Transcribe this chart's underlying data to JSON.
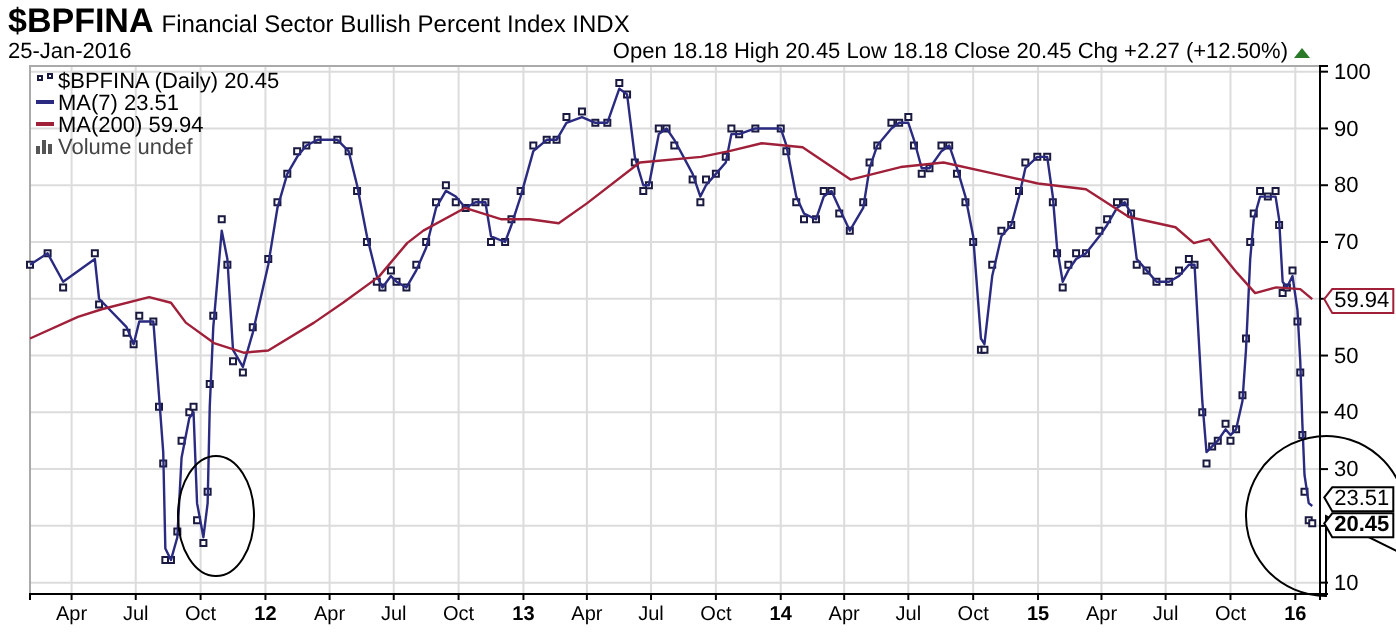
{
  "chart_data": {
    "type": "line",
    "title": "$BPFINA",
    "subtitle": "Financial Sector Bullish Percent Index INDX",
    "annotations": [
      "25-Jan-2016",
      "Open 18.18 High 20.45 Low 18.18 Close 20.45 Chg +2.27 (+12.50%)",
      "Volume undef",
      {
        "text": "59.94",
        "x": "2016-01-25",
        "y": 59.94
      },
      {
        "text": "23.51",
        "x": "2016-01-25",
        "y": 23.51
      },
      {
        "text": "20.45",
        "x": "2016-01-25",
        "y": 20.45
      }
    ],
    "xlim": [
      "2011-02-01",
      "2016-02-05"
    ],
    "ylim": [
      8,
      101
    ],
    "yticks": [
      10,
      {
        "value": 20,
        "label": null
      },
      30,
      40,
      50,
      {
        "value": 60,
        "label": null
      },
      70,
      80,
      90,
      100
    ],
    "xticks": [
      {
        "value": "2011-04-01",
        "label": "Apr"
      },
      {
        "value": "2011-07-01",
        "label": "Jul"
      },
      {
        "value": "2011-10-01",
        "label": "Oct"
      },
      {
        "value": "2012-01-01",
        "label": "12"
      },
      {
        "value": "2012-04-01",
        "label": "Apr"
      },
      {
        "value": "2012-07-01",
        "label": "Jul"
      },
      {
        "value": "2012-10-01",
        "label": "Oct"
      },
      {
        "value": "2013-01-01",
        "label": "13"
      },
      {
        "value": "2013-04-01",
        "label": "Apr"
      },
      {
        "value": "2013-07-01",
        "label": "Jul"
      },
      {
        "value": "2013-10-01",
        "label": "Oct"
      },
      {
        "value": "2014-01-01",
        "label": "14"
      },
      {
        "value": "2014-04-01",
        "label": "Apr"
      },
      {
        "value": "2014-07-01",
        "label": "Jul"
      },
      {
        "value": "2014-10-01",
        "label": "Oct"
      },
      {
        "value": "2015-01-01",
        "label": "15"
      },
      {
        "value": "2015-04-01",
        "label": "Apr"
      },
      {
        "value": "2015-07-01",
        "label": "Jul"
      },
      {
        "value": "2015-10-01",
        "label": "Oct"
      },
      {
        "value": "2016-01-01",
        "label": "16"
      }
    ],
    "grid": true,
    "legend": "top left",
    "series": [
      {
        "name": "$BPFINA (Daily) 20.45",
        "type": "scatter",
        "marker": "square",
        "color": "#1a1a40",
        "x": [
          "2011-02-01",
          "2011-02-26",
          "2011-03-20",
          "2011-05-04",
          "2011-05-10",
          "2011-06-18",
          "2011-06-28",
          "2011-07-06",
          "2011-07-26",
          "2011-08-03",
          "2011-08-09",
          "2011-08-12",
          "2011-08-20",
          "2011-08-29",
          "2011-09-04",
          "2011-09-15",
          "2011-09-21",
          "2011-09-26",
          "2011-10-05",
          "2011-10-11",
          "2011-10-14",
          "2011-10-19",
          "2011-10-31",
          "2011-11-08",
          "2011-11-16",
          "2011-11-30",
          "2011-12-14",
          "2012-01-05",
          "2012-01-18",
          "2012-02-01",
          "2012-02-15",
          "2012-02-28",
          "2012-03-15",
          "2012-04-12",
          "2012-04-28",
          "2012-05-10",
          "2012-05-24",
          "2012-06-07",
          "2012-06-15",
          "2012-06-27",
          "2012-07-05",
          "2012-07-19",
          "2012-08-02",
          "2012-08-16",
          "2012-08-30",
          "2012-09-13",
          "2012-09-27",
          "2012-10-11",
          "2012-10-25",
          "2012-11-08",
          "2012-11-16",
          "2012-12-06",
          "2012-12-15",
          "2012-12-28",
          "2013-01-15",
          "2013-02-03",
          "2013-02-17",
          "2013-03-03",
          "2013-03-25",
          "2013-04-13",
          "2013-04-30",
          "2013-05-17",
          "2013-05-28",
          "2013-06-08",
          "2013-06-20",
          "2013-06-28",
          "2013-07-12",
          "2013-07-23",
          "2013-08-03",
          "2013-08-29",
          "2013-09-09",
          "2013-09-17",
          "2013-10-01",
          "2013-10-15",
          "2013-10-23",
          "2013-11-03",
          "2013-11-26",
          "2014-01-01",
          "2014-01-09",
          "2014-01-23",
          "2014-02-03",
          "2014-02-20",
          "2014-03-03",
          "2014-03-14",
          "2014-03-25",
          "2014-04-09",
          "2014-04-28",
          "2014-05-07",
          "2014-05-18",
          "2014-06-07",
          "2014-06-18",
          "2014-07-01",
          "2014-07-09",
          "2014-07-20",
          "2014-07-31",
          "2014-08-17",
          "2014-08-28",
          "2014-09-08",
          "2014-09-20",
          "2014-10-01",
          "2014-10-12",
          "2014-10-17",
          "2014-10-28",
          "2014-11-10",
          "2014-11-24",
          "2014-12-05",
          "2014-12-14",
          "2014-12-31",
          "2015-01-14",
          "2015-01-22",
          "2015-01-28",
          "2015-02-05",
          "2015-02-13",
          "2015-02-24",
          "2015-03-10",
          "2015-03-29",
          "2015-04-09",
          "2015-04-23",
          "2015-05-04",
          "2015-05-13",
          "2015-05-21",
          "2015-06-04",
          "2015-06-18",
          "2015-07-06",
          "2015-07-20",
          "2015-08-03",
          "2015-08-11",
          "2015-08-22",
          "2015-08-28",
          "2015-09-05",
          "2015-09-13",
          "2015-09-24",
          "2015-10-01",
          "2015-10-09",
          "2015-10-18",
          "2015-10-23",
          "2015-10-29",
          "2015-11-03",
          "2015-11-12",
          "2015-11-23",
          "2015-12-04",
          "2015-12-09",
          "2015-12-14",
          "2015-12-20",
          "2015-12-28",
          "2016-01-04",
          "2016-01-08",
          "2016-01-11",
          "2016-01-14",
          "2016-01-20",
          "2016-01-25"
        ],
        "values": [
          66,
          68,
          62,
          68,
          59,
          54,
          52,
          57,
          56,
          41,
          31,
          14,
          14,
          19,
          35,
          40,
          41,
          21,
          17,
          26,
          45,
          57,
          74,
          66,
          49,
          47,
          55,
          67,
          77,
          82,
          86,
          87,
          88,
          88,
          86,
          79,
          70,
          63,
          62,
          65,
          63,
          62,
          66,
          70,
          77,
          80,
          77,
          76,
          77,
          77,
          70,
          70,
          74,
          79,
          87,
          88,
          88,
          92,
          93,
          91,
          91,
          98,
          96,
          84,
          79,
          80,
          90,
          90,
          87,
          81,
          77,
          81,
          82,
          85,
          90,
          89,
          90,
          90,
          86,
          77,
          74,
          74,
          79,
          79,
          75,
          72,
          77,
          84,
          87,
          91,
          91,
          92,
          87,
          82,
          83,
          87,
          87,
          82,
          77,
          70,
          51,
          51,
          66,
          72,
          73,
          79,
          84,
          85,
          85,
          77,
          68,
          62,
          66,
          68,
          68,
          72,
          74,
          77,
          77,
          75,
          66,
          65,
          63,
          63,
          65,
          67,
          66,
          40,
          31,
          34,
          35,
          38,
          35,
          37,
          43,
          53,
          70,
          75,
          79,
          78,
          79,
          73,
          61,
          62,
          65,
          56,
          47,
          36,
          26,
          21,
          20.45
        ]
      },
      {
        "name": "MA(7) 23.51",
        "color": "#2a2a80",
        "x": [
          "2011-02-01",
          "2011-02-26",
          "2011-03-20",
          "2011-05-04",
          "2011-05-10",
          "2011-06-18",
          "2011-06-28",
          "2011-07-06",
          "2011-07-26",
          "2011-08-03",
          "2011-08-09",
          "2011-08-12",
          "2011-08-20",
          "2011-08-29",
          "2011-09-04",
          "2011-09-15",
          "2011-09-21",
          "2011-09-26",
          "2011-10-05",
          "2011-10-11",
          "2011-10-14",
          "2011-10-19",
          "2011-10-31",
          "2011-11-08",
          "2011-11-16",
          "2011-11-30",
          "2011-12-14",
          "2012-01-05",
          "2012-01-18",
          "2012-02-01",
          "2012-02-15",
          "2012-02-28",
          "2012-03-15",
          "2012-04-12",
          "2012-04-28",
          "2012-05-10",
          "2012-05-24",
          "2012-06-07",
          "2012-06-15",
          "2012-06-27",
          "2012-07-05",
          "2012-07-19",
          "2012-08-02",
          "2012-08-16",
          "2012-08-30",
          "2012-09-13",
          "2012-09-27",
          "2012-10-11",
          "2012-10-25",
          "2012-11-08",
          "2012-11-16",
          "2012-12-06",
          "2012-12-15",
          "2012-12-28",
          "2013-01-15",
          "2013-02-03",
          "2013-02-17",
          "2013-03-03",
          "2013-03-25",
          "2013-04-13",
          "2013-04-30",
          "2013-05-17",
          "2013-05-28",
          "2013-06-08",
          "2013-06-20",
          "2013-06-28",
          "2013-07-12",
          "2013-07-23",
          "2013-08-03",
          "2013-08-29",
          "2013-09-09",
          "2013-09-17",
          "2013-10-01",
          "2013-10-15",
          "2013-10-23",
          "2013-11-03",
          "2013-11-26",
          "2014-01-01",
          "2014-01-09",
          "2014-01-23",
          "2014-02-03",
          "2014-02-20",
          "2014-03-03",
          "2014-03-14",
          "2014-03-25",
          "2014-04-09",
          "2014-04-28",
          "2014-05-07",
          "2014-05-18",
          "2014-06-07",
          "2014-06-18",
          "2014-07-01",
          "2014-07-09",
          "2014-07-20",
          "2014-07-31",
          "2014-08-17",
          "2014-08-28",
          "2014-09-08",
          "2014-09-20",
          "2014-10-01",
          "2014-10-12",
          "2014-10-17",
          "2014-10-28",
          "2014-11-10",
          "2014-11-24",
          "2014-12-05",
          "2014-12-14",
          "2014-12-31",
          "2015-01-14",
          "2015-01-22",
          "2015-01-28",
          "2015-02-05",
          "2015-02-13",
          "2015-02-24",
          "2015-03-10",
          "2015-03-29",
          "2015-04-09",
          "2015-04-23",
          "2015-05-04",
          "2015-05-13",
          "2015-05-21",
          "2015-06-04",
          "2015-06-18",
          "2015-07-06",
          "2015-07-20",
          "2015-08-03",
          "2015-08-11",
          "2015-08-22",
          "2015-08-28",
          "2015-09-05",
          "2015-09-13",
          "2015-09-24",
          "2015-10-01",
          "2015-10-09",
          "2015-10-18",
          "2015-10-23",
          "2015-10-29",
          "2015-11-03",
          "2015-11-12",
          "2015-11-23",
          "2015-12-04",
          "2015-12-09",
          "2015-12-14",
          "2015-12-20",
          "2015-12-28",
          "2016-01-04",
          "2016-01-08",
          "2016-01-11",
          "2016-01-14",
          "2016-01-20",
          "2016-01-25"
        ],
        "values": [
          66,
          68,
          63,
          67,
          60,
          55,
          52,
          56,
          56,
          43,
          33,
          16,
          14,
          18,
          32,
          39,
          40,
          24,
          18,
          24,
          41,
          55,
          72,
          67,
          51,
          48,
          54,
          66,
          76,
          82,
          85,
          87,
          88,
          88,
          86,
          80,
          71,
          64,
          62,
          64,
          63,
          62,
          65,
          69,
          76,
          79,
          78,
          76,
          77,
          77,
          71,
          70,
          73,
          78,
          86,
          88,
          88,
          91,
          92,
          91,
          91,
          97,
          96,
          85,
          80,
          80,
          89,
          90,
          88,
          82,
          78,
          80,
          82,
          84,
          89,
          89,
          90,
          90,
          87,
          78,
          75,
          74,
          78,
          79,
          76,
          72,
          76,
          83,
          87,
          90,
          91,
          91,
          88,
          83,
          83,
          86,
          87,
          83,
          78,
          71,
          53,
          52,
          64,
          71,
          73,
          78,
          83,
          85,
          85,
          78,
          69,
          63,
          65,
          67,
          68,
          71,
          73,
          76,
          77,
          75,
          67,
          65,
          63,
          63,
          64,
          66,
          66,
          42,
          33,
          34,
          35,
          37,
          36,
          37,
          42,
          51,
          67,
          74,
          78,
          78,
          78,
          74,
          63,
          62,
          64,
          58,
          49,
          38,
          29,
          24,
          23.51
        ]
      },
      {
        "name": "MA(200) 59.94",
        "color": "#a0203a",
        "x": [
          "2011-02-01",
          "2011-04-10",
          "2011-05-15",
          "2011-07-20",
          "2011-08-20",
          "2011-09-10",
          "2011-10-20",
          "2011-12-01",
          "2012-01-05",
          "2012-03-10",
          "2012-04-20",
          "2012-06-10",
          "2012-07-20",
          "2012-08-12",
          "2012-10-10",
          "2012-12-01",
          "2013-01-10",
          "2013-02-20",
          "2013-04-01",
          "2013-06-15",
          "2013-09-10",
          "2013-10-20",
          "2013-12-05",
          "2014-02-01",
          "2014-04-10",
          "2014-06-20",
          "2014-08-20",
          "2014-11-01",
          "2015-01-01",
          "2015-03-10",
          "2015-05-10",
          "2015-07-15",
          "2015-08-10",
          "2015-09-01",
          "2015-10-10",
          "2015-11-05",
          "2015-12-05",
          "2016-01-08",
          "2016-01-25"
        ],
        "values": [
          53,
          56.8,
          58.2,
          60.3,
          59.3,
          55.8,
          52.2,
          50.5,
          50.9,
          55.8,
          59.3,
          63.9,
          69.8,
          72,
          76,
          74,
          74,
          73.3,
          76.8,
          84,
          85,
          86,
          87.4,
          86.7,
          81,
          83.2,
          84,
          82,
          80.3,
          79.3,
          74.4,
          72.6,
          69.8,
          70.5,
          64.6,
          61,
          62,
          61.7,
          59.94
        ]
      }
    ]
  }
}
